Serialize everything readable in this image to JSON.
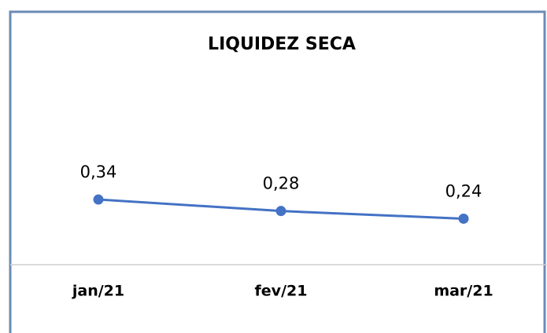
{
  "chart_data": {
    "type": "line",
    "title": "LIQUIDEZ SECA",
    "categories": [
      "jan/21",
      "fev/21",
      "mar/21"
    ],
    "series": [
      {
        "color": "#4472c4",
        "values": [
          0.34,
          0.28,
          0.24
        ],
        "value_labels": [
          "0,34",
          "0,28",
          "0,24"
        ]
      }
    ]
  }
}
